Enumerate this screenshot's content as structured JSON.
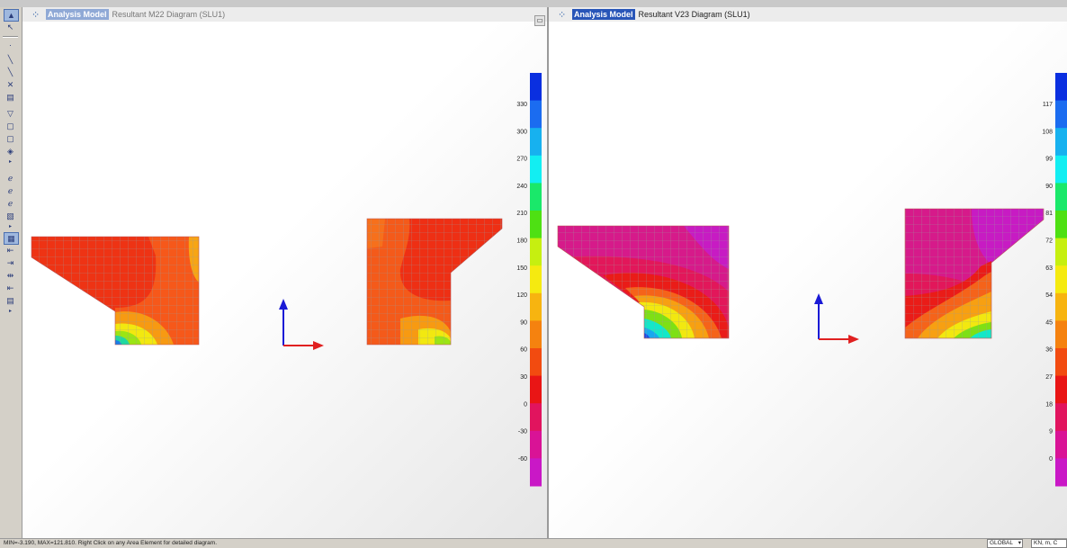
{
  "left_pane": {
    "model_label": "Analysis Model",
    "diagram_label": "Resultant M22 Diagram  (SLU1)",
    "legend_ticks": [
      "330",
      "300",
      "270",
      "240",
      "210",
      "180",
      "150",
      "120",
      "90",
      "60",
      "30",
      "0",
      "-30",
      "-60"
    ]
  },
  "right_pane": {
    "model_label": "Analysis Model",
    "diagram_label": "Resultant V23 Diagram  (SLU1)",
    "legend_ticks": [
      "117",
      "108",
      "99",
      "90",
      "81",
      "72",
      "63",
      "54",
      "45",
      "36",
      "27",
      "18",
      "9",
      "0"
    ]
  },
  "status": {
    "message": "MIN=-3.190, MAX=121.810. Right Click on any Area Element for detailed diagram.",
    "coord_system": "GLOBAL",
    "units": "KN, m, C"
  },
  "toolbar_icons": [
    "pointer-icon",
    "reshape-icon",
    "dot-icon",
    "line-icon",
    "line-icon",
    "cross-icon",
    "grid-icon",
    "shape-icon",
    "box-icon",
    "box-icon",
    "solid-icon",
    "expand-icon",
    "frame-icon",
    "frame-icon",
    "frame-icon",
    "frame-icon",
    "expand-icon",
    "view-icon",
    "view-icon",
    "view-icon",
    "view-icon",
    "view-icon",
    "view-icon",
    "expand-icon"
  ],
  "colors": {
    "title_highlight": "#3a6fc4",
    "axis_x": "#e02020",
    "axis_y": "#1a1ad6",
    "legend_scale": [
      "#0a2fe0",
      "#1b6cf0",
      "#17b1ef",
      "#12eef2",
      "#1ae86a",
      "#4ee013",
      "#c6ef10",
      "#f5ea10",
      "#f7b410",
      "#f5820f",
      "#f24b10",
      "#e91515",
      "#e1145e",
      "#d91396",
      "#c918c6"
    ]
  }
}
